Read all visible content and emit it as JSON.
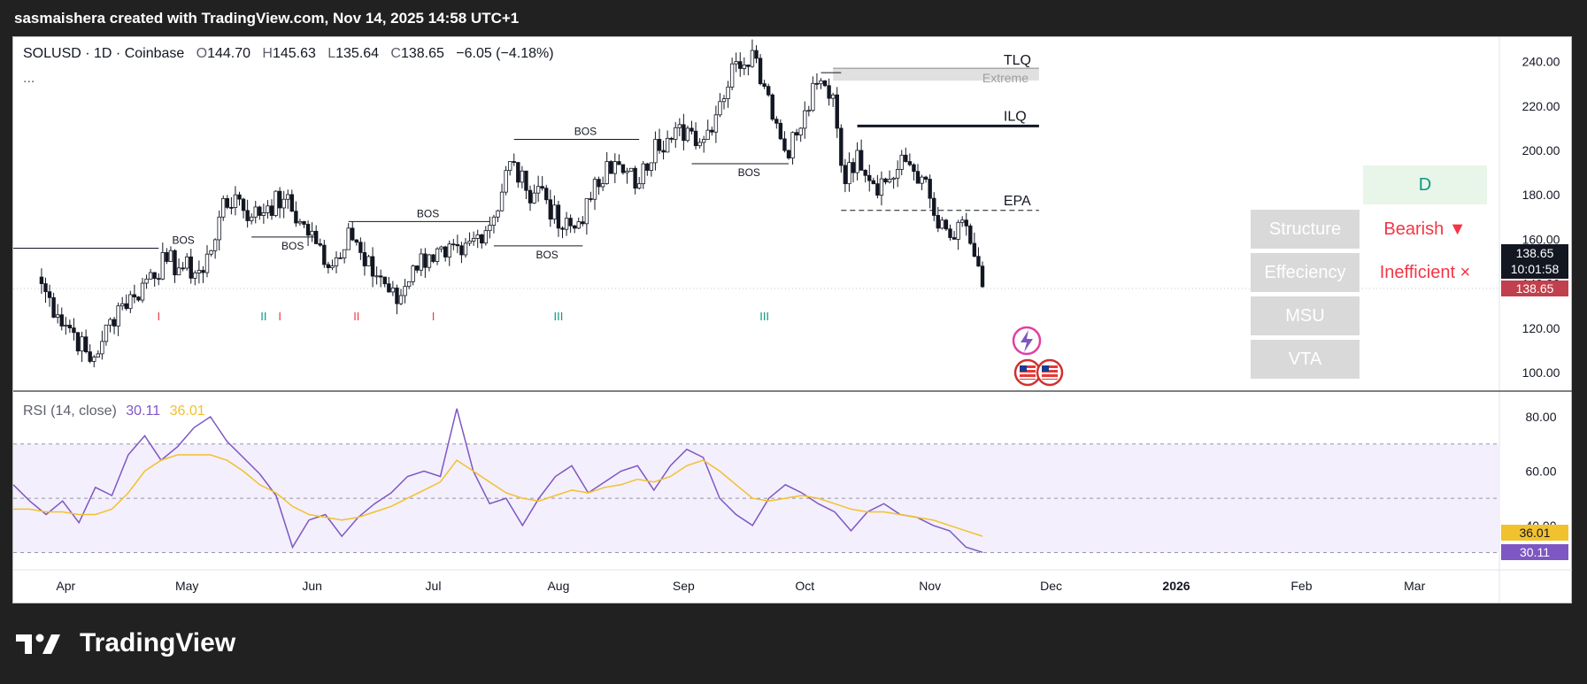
{
  "header": {
    "attribution": "sasmaishera created with TradingView.com, Nov 14, 2025 14:58 UTC+1"
  },
  "legend": {
    "symbol": "SOLUSD · 1D · Coinbase",
    "o_label": "O",
    "o": "144.70",
    "h_label": "H",
    "h": "145.63",
    "l_label": "L",
    "l": "135.64",
    "c_label": "C",
    "c": "138.65",
    "change": "−6.05 (−4.18%)",
    "more": "..."
  },
  "rsi_legend": {
    "name": "RSI (14, close)",
    "rsi": "30.11",
    "ma": "36.01"
  },
  "panel": {
    "d_label": "D",
    "structure_label": "Structure",
    "structure_value": "Bearish ▼",
    "efficiency_label": "Effeciency",
    "efficiency_value": "Inefficient ×",
    "msu_label": "MSU",
    "vta_label": "VTA"
  },
  "price_tags": {
    "last": "138.65",
    "countdown": "10:01:58",
    "close": "138.65",
    "rsi": "30.11",
    "rsi_ma": "36.01"
  },
  "brand": {
    "name": "TradingView"
  },
  "colors": {
    "up": "#089981",
    "down": "#f23645",
    "rsi_line": "#7e57c2",
    "rsi_ma": "#f2c12e",
    "rsi_band": "#f3effc",
    "last_tag": "#131722",
    "close_tag": "#c0404d",
    "rsi_tag": "#7e57c2",
    "rsima_tag": "#f2c12e"
  },
  "chart_data": [
    {
      "type": "candlestick",
      "symbol": "SOLUSD",
      "interval": "1D",
      "exchange": "Coinbase",
      "ylim": [
        92,
        252
      ],
      "y_ticks": [
        "240.00",
        "220.00",
        "200.00",
        "180.00",
        "160.00",
        "140.00",
        "120.00",
        "100.00"
      ],
      "x_ticks": [
        "Apr",
        "May",
        "Jun",
        "Jul",
        "Aug",
        "Sep",
        "Oct",
        "Nov",
        "Dec",
        "2026",
        "Feb",
        "Mar"
      ],
      "close_path": [
        {
          "date": "2025-03-26",
          "close": 140
        },
        {
          "date": "2025-03-30",
          "close": 126
        },
        {
          "date": "2025-04-03",
          "close": 118
        },
        {
          "date": "2025-04-07",
          "close": 105
        },
        {
          "date": "2025-04-10",
          "close": 114
        },
        {
          "date": "2025-04-14",
          "close": 130
        },
        {
          "date": "2025-04-18",
          "close": 134
        },
        {
          "date": "2025-04-22",
          "close": 145
        },
        {
          "date": "2025-04-26",
          "close": 150
        },
        {
          "date": "2025-04-30",
          "close": 147
        },
        {
          "date": "2025-05-05",
          "close": 145
        },
        {
          "date": "2025-05-09",
          "close": 170
        },
        {
          "date": "2025-05-13",
          "close": 180
        },
        {
          "date": "2025-05-17",
          "close": 170
        },
        {
          "date": "2025-05-21",
          "close": 175
        },
        {
          "date": "2025-05-25",
          "close": 178
        },
        {
          "date": "2025-05-29",
          "close": 168
        },
        {
          "date": "2025-06-02",
          "close": 158
        },
        {
          "date": "2025-06-06",
          "close": 148
        },
        {
          "date": "2025-06-10",
          "close": 165
        },
        {
          "date": "2025-06-14",
          "close": 148
        },
        {
          "date": "2025-06-18",
          "close": 143
        },
        {
          "date": "2025-06-22",
          "close": 131
        },
        {
          "date": "2025-06-26",
          "close": 148
        },
        {
          "date": "2025-06-30",
          "close": 153
        },
        {
          "date": "2025-07-04",
          "close": 152
        },
        {
          "date": "2025-07-08",
          "close": 153
        },
        {
          "date": "2025-07-12",
          "close": 162
        },
        {
          "date": "2025-07-16",
          "close": 170
        },
        {
          "date": "2025-07-20",
          "close": 195
        },
        {
          "date": "2025-07-24",
          "close": 182
        },
        {
          "date": "2025-07-28",
          "close": 183
        },
        {
          "date": "2025-08-01",
          "close": 165
        },
        {
          "date": "2025-08-05",
          "close": 165
        },
        {
          "date": "2025-08-09",
          "close": 178
        },
        {
          "date": "2025-08-13",
          "close": 195
        },
        {
          "date": "2025-08-17",
          "close": 190
        },
        {
          "date": "2025-08-21",
          "close": 185
        },
        {
          "date": "2025-08-25",
          "close": 205
        },
        {
          "date": "2025-08-29",
          "close": 205
        },
        {
          "date": "2025-09-02",
          "close": 210
        },
        {
          "date": "2025-09-06",
          "close": 205
        },
        {
          "date": "2025-09-10",
          "close": 222
        },
        {
          "date": "2025-09-14",
          "close": 240
        },
        {
          "date": "2025-09-18",
          "close": 245
        },
        {
          "date": "2025-09-22",
          "close": 225
        },
        {
          "date": "2025-09-26",
          "close": 200
        },
        {
          "date": "2025-09-30",
          "close": 210
        },
        {
          "date": "2025-10-04",
          "close": 230
        },
        {
          "date": "2025-10-08",
          "close": 225
        },
        {
          "date": "2025-10-11",
          "close": 185
        },
        {
          "date": "2025-10-14",
          "close": 200
        },
        {
          "date": "2025-10-18",
          "close": 185
        },
        {
          "date": "2025-10-22",
          "close": 187
        },
        {
          "date": "2025-10-26",
          "close": 195
        },
        {
          "date": "2025-10-30",
          "close": 188
        },
        {
          "date": "2025-11-03",
          "close": 165
        },
        {
          "date": "2025-11-07",
          "close": 160
        },
        {
          "date": "2025-11-10",
          "close": 166
        },
        {
          "date": "2025-11-14",
          "close": 138.65
        }
      ],
      "levels": [
        {
          "label": "TLQ",
          "price": 237
        },
        {
          "label": "Extreme",
          "price": 235
        },
        {
          "label": "ILQ",
          "price": 211
        },
        {
          "label": "EPA",
          "price": 173
        }
      ],
      "bos_labels": [
        "BOS",
        "BOS",
        "BOS",
        "BOS",
        "BOS",
        "BOS",
        "BOS"
      ],
      "markers": [
        "I",
        "II",
        "I",
        "II",
        "I",
        "III",
        "III"
      ]
    },
    {
      "type": "line",
      "name": "RSI (14, close)",
      "ylim": [
        26,
        86
      ],
      "y_ticks": [
        "80.00",
        "60.00",
        "40.00"
      ],
      "bands": [
        70,
        50,
        30
      ],
      "series": [
        {
          "name": "RSI",
          "values": [
            55,
            49,
            44,
            49,
            41,
            54,
            51,
            66,
            73,
            64,
            69,
            76,
            80,
            71,
            65,
            59,
            51,
            32,
            42,
            44,
            36,
            43,
            48,
            52,
            58,
            60,
            58,
            83,
            60,
            48,
            50,
            40,
            50,
            58,
            62,
            52,
            56,
            60,
            62,
            53,
            62,
            68,
            65,
            50,
            44,
            40,
            50,
            55,
            52,
            48,
            45,
            38,
            45,
            48,
            44,
            43,
            40,
            38,
            32,
            30.11
          ]
        },
        {
          "name": "RSI MA",
          "values": [
            46,
            46,
            45,
            45,
            44,
            44,
            46,
            52,
            60,
            64,
            66,
            66,
            66,
            64,
            60,
            55,
            52,
            47,
            44,
            43,
            42,
            43,
            45,
            47,
            50,
            53,
            56,
            64,
            60,
            56,
            52,
            50,
            49,
            51,
            53,
            52,
            54,
            55,
            57,
            56,
            58,
            62,
            64,
            60,
            55,
            50,
            49,
            50,
            51,
            50,
            48,
            46,
            45,
            45,
            44,
            43,
            42,
            40,
            38,
            36.01
          ]
        }
      ]
    }
  ]
}
